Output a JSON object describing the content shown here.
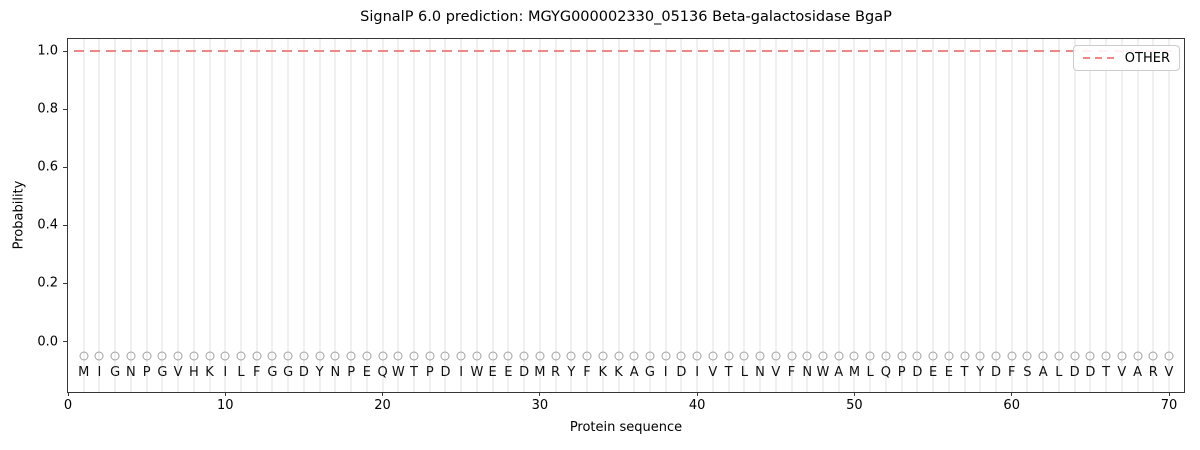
{
  "chart_data": {
    "type": "line",
    "title": "SignalP 6.0 prediction: MGYG000002330_05136 Beta-galactosidase BgaP",
    "xlabel": "Protein sequence",
    "ylabel": "Probability",
    "x_ticks": [
      0,
      10,
      20,
      30,
      40,
      50,
      60,
      70
    ],
    "y_ticks": [
      "0.0",
      "0.2",
      "0.4",
      "0.6",
      "0.8",
      "1.0"
    ],
    "xlim": [
      0,
      71
    ],
    "ylim": [
      -0.18,
      1.08
    ],
    "grid": {
      "vertical_per_residue": true,
      "horizontal": false,
      "color": "#f0f0f0"
    },
    "legend": {
      "position": "upper right",
      "entries": [
        {
          "label": "OTHER",
          "color": "#ee8888",
          "linestyle": "dashed"
        }
      ]
    },
    "series": [
      {
        "name": "OTHER",
        "color": "#ee8888",
        "linestyle": "dashed",
        "x_start": 1,
        "x_end": 70,
        "constant_value": 1.0,
        "values": [
          1.0,
          1.0,
          1.0,
          1.0,
          1.0,
          1.0,
          1.0,
          1.0,
          1.0,
          1.0,
          1.0,
          1.0,
          1.0,
          1.0,
          1.0,
          1.0,
          1.0,
          1.0,
          1.0,
          1.0,
          1.0,
          1.0,
          1.0,
          1.0,
          1.0,
          1.0,
          1.0,
          1.0,
          1.0,
          1.0,
          1.0,
          1.0,
          1.0,
          1.0,
          1.0,
          1.0,
          1.0,
          1.0,
          1.0,
          1.0,
          1.0,
          1.0,
          1.0,
          1.0,
          1.0,
          1.0,
          1.0,
          1.0,
          1.0,
          1.0,
          1.0,
          1.0,
          1.0,
          1.0,
          1.0,
          1.0,
          1.0,
          1.0,
          1.0,
          1.0,
          1.0,
          1.0,
          1.0,
          1.0,
          1.0,
          1.0,
          1.0,
          1.0,
          1.0,
          1.0
        ]
      }
    ],
    "sequence": [
      "M",
      "I",
      "G",
      "N",
      "P",
      "G",
      "V",
      "H",
      "K",
      "I",
      "L",
      "F",
      "G",
      "G",
      "D",
      "Y",
      "N",
      "P",
      "E",
      "Q",
      "W",
      "T",
      "P",
      "D",
      "I",
      "W",
      "E",
      "E",
      "D",
      "M",
      "R",
      "Y",
      "F",
      "K",
      "K",
      "A",
      "G",
      "I",
      "D",
      "I",
      "V",
      "T",
      "L",
      "N",
      "V",
      "F",
      "N",
      "W",
      "A",
      "M",
      "L",
      "Q",
      "P",
      "D",
      "E",
      "E",
      "T",
      "Y",
      "D",
      "F",
      "S",
      "A",
      "L",
      "D",
      "D",
      "T",
      "V",
      "A",
      "R",
      "V"
    ],
    "residue_marker": {
      "shape": "circle-outline",
      "y": -0.05,
      "color": "#a2a2a2"
    }
  }
}
